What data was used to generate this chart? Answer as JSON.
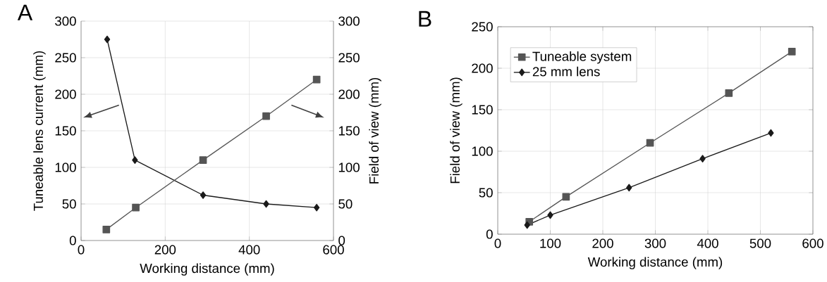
{
  "chart_data": [
    {
      "type": "line",
      "title": "A",
      "xlabel": "Working distance (mm)",
      "ylabel": "Tuneable lens current (mm)",
      "y2label": "Field of view (mm)",
      "xlim": [
        0,
        600
      ],
      "xticks": [
        0,
        200,
        400,
        600
      ],
      "ylim": [
        0,
        300
      ],
      "yticks": [
        0,
        50,
        100,
        150,
        200,
        250,
        300
      ],
      "y2lim": [
        0,
        300
      ],
      "y2ticks": [
        0,
        50,
        100,
        150,
        200,
        250,
        300
      ],
      "grid": true,
      "legend": false,
      "series": [
        {
          "x": [
            62,
            128,
            290,
            440,
            560
          ],
          "values": [
            275,
            110,
            62,
            50,
            45
          ],
          "color": "#1a1a1a",
          "marker": "diamond"
        },
        {
          "x": [
            60,
            130,
            290,
            440,
            560
          ],
          "values": [
            15,
            45,
            110,
            170,
            220
          ],
          "color": "#555555",
          "marker": "square",
          "axis": "y2"
        }
      ]
    },
    {
      "type": "line",
      "title": "B",
      "xlabel": "Working distance (mm)",
      "ylabel": "Field of view (mm)",
      "xlim": [
        0,
        600
      ],
      "xticks": [
        0,
        100,
        200,
        300,
        400,
        500,
        600
      ],
      "ylim": [
        0,
        250
      ],
      "yticks": [
        0,
        50,
        100,
        150,
        200,
        250
      ],
      "grid": true,
      "legend": "top left",
      "series": [
        {
          "name": "Tuneable system",
          "x": [
            60,
            130,
            290,
            440,
            560
          ],
          "values": [
            15,
            45,
            110,
            170,
            220
          ],
          "color": "#555555",
          "marker": "square"
        },
        {
          "name": "25 mm lens",
          "x": [
            56,
            100,
            250,
            390,
            520
          ],
          "values": [
            11,
            23,
            56,
            91,
            122
          ],
          "color": "#1a1a1a",
          "marker": "diamond"
        }
      ]
    }
  ]
}
